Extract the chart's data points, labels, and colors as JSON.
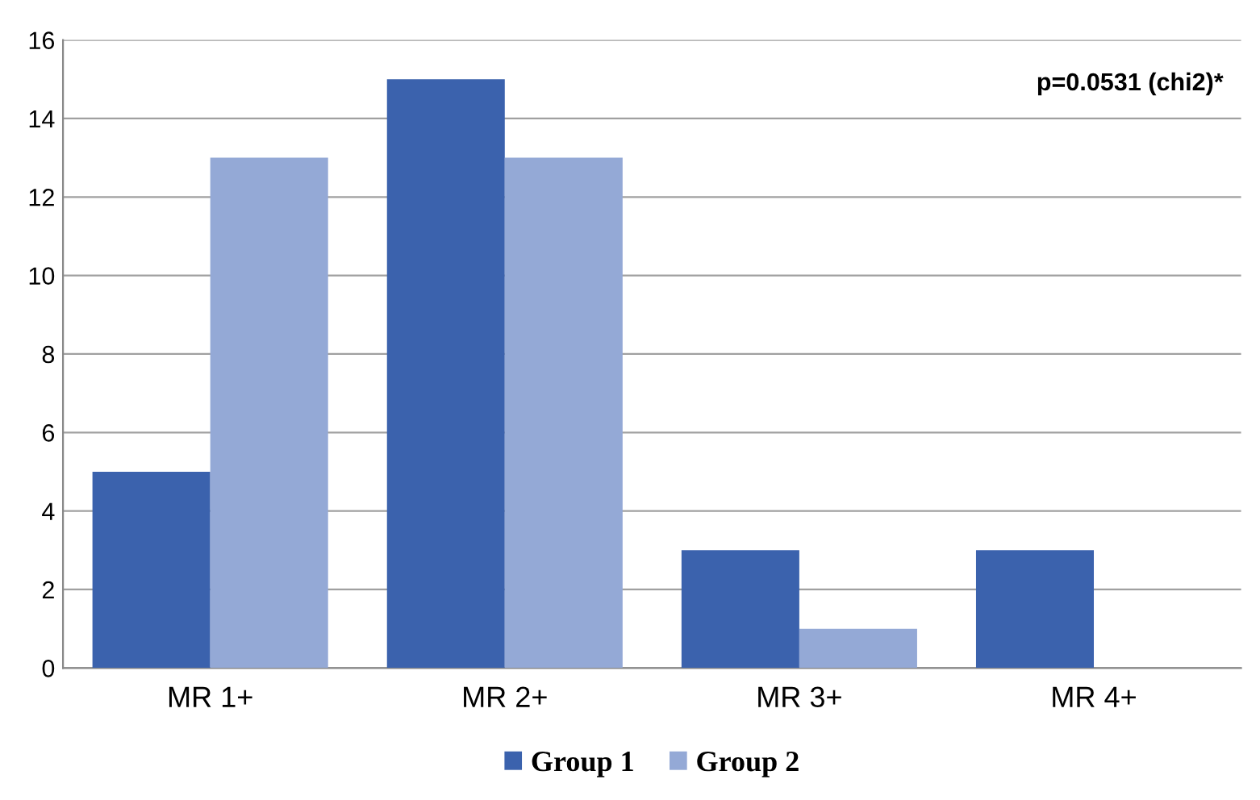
{
  "chart_data": {
    "type": "bar",
    "categories": [
      "MR 1+",
      "MR 2+",
      "MR 3+",
      "MR 4+"
    ],
    "series": [
      {
        "name": "Group 1",
        "color": "#3b62ad",
        "values": [
          5,
          15,
          3,
          3
        ]
      },
      {
        "name": "Group 2",
        "color": "#94a9d6",
        "values": [
          13,
          13,
          1,
          0
        ]
      }
    ],
    "ylim": [
      0,
      16
    ],
    "yticks": [
      0,
      2,
      4,
      6,
      8,
      10,
      12,
      14,
      16
    ],
    "grid": "y",
    "legend": "bottom",
    "annotations": [
      "p=0.0531 (chi2)*"
    ]
  }
}
